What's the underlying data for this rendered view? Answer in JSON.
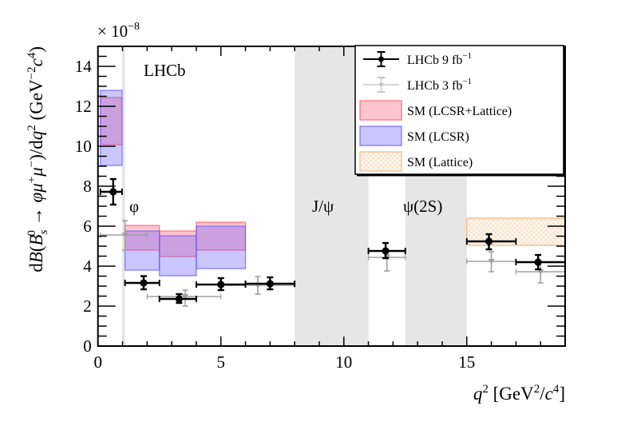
{
  "chart_data": {
    "type": "scatter",
    "title": "",
    "xlabel": "q^2 [GeV^2/c^4]",
    "xlabel_parts": {
      "q": "q",
      "sup1": "2",
      "mid": " [GeV",
      "sup2": "2",
      "slash": "/",
      "c": "c",
      "sup3": "4",
      "end": "]"
    },
    "ylabel": "dB(B_s^0 → φμ+μ−)/dq^2 (GeV^-2 c^4)",
    "ylabel_parts": {
      "d": "d",
      "B": "B",
      "open": "(",
      "Bs": "B",
      "sub": "s",
      "sup0": "0",
      "arrow": " → ",
      "phi": "φ",
      "mu": "μ",
      "plus": "+",
      "minus": "−",
      "close": ")/d",
      "q": "q",
      "sup2": "2",
      "units": " (GeV",
      "supm2": "−2",
      "c": "c",
      "sup4": "4",
      "uend": ")"
    },
    "y_multiplier": "× 10",
    "y_multiplier_exp": "−8",
    "xlim": [
      0,
      19
    ],
    "ylim": [
      0,
      15
    ],
    "x_ticks": [
      0,
      5,
      10,
      15
    ],
    "x_tick_labels": [
      "0",
      "5",
      "10",
      "15"
    ],
    "y_ticks": [
      0,
      2,
      4,
      6,
      8,
      10,
      12,
      14
    ],
    "y_tick_labels": [
      "0",
      "2",
      "4",
      "6",
      "8",
      "10",
      "12",
      "14"
    ],
    "grid": false,
    "legend_position": "top-right",
    "experiment_label": "LHCb",
    "vetoed_regions": [
      {
        "x0": 0.98,
        "x1": 1.1,
        "label": "φ"
      },
      {
        "x0": 8.0,
        "x1": 11.0,
        "label": "J/ψ"
      },
      {
        "x0": 12.5,
        "x1": 15.0,
        "label": "ψ(2S)"
      }
    ],
    "series": [
      {
        "name": "LHCb 9 fb−1",
        "legend": {
          "main": "LHCb 9 fb",
          "sup": "−1"
        },
        "kind": "points",
        "color": "#000000",
        "points": [
          {
            "x0": 0.1,
            "x1": 0.98,
            "x": 0.62,
            "y": 7.72,
            "ylo": 7.08,
            "yhi": 8.36
          },
          {
            "x0": 1.1,
            "x1": 2.5,
            "x": 1.86,
            "y": 3.16,
            "ylo": 2.84,
            "yhi": 3.5
          },
          {
            "x0": 2.5,
            "x1": 4.0,
            "x": 3.3,
            "y": 2.36,
            "ylo": 2.16,
            "yhi": 2.6
          },
          {
            "x0": 4.0,
            "x1": 6.0,
            "x": 5.0,
            "y": 3.08,
            "ylo": 2.8,
            "yhi": 3.4
          },
          {
            "x0": 6.0,
            "x1": 8.0,
            "x": 7.0,
            "y": 3.12,
            "ylo": 2.84,
            "yhi": 3.44
          },
          {
            "x0": 11.0,
            "x1": 12.5,
            "x": 11.7,
            "y": 4.76,
            "ylo": 4.4,
            "yhi": 5.16
          },
          {
            "x0": 15.0,
            "x1": 17.0,
            "x": 15.9,
            "y": 5.24,
            "ylo": 4.84,
            "yhi": 5.6
          },
          {
            "x0": 17.0,
            "x1": 19.0,
            "x": 17.9,
            "y": 4.2,
            "ylo": 3.84,
            "yhi": 4.56
          }
        ]
      },
      {
        "name": "LHCb 3 fb−1",
        "legend": {
          "main": "LHCb 3 fb",
          "sup": "−1"
        },
        "kind": "points",
        "color": "#a0a0a0",
        "points": [
          {
            "x0": 0.1,
            "x1": 2.0,
            "x": 1.1,
            "y": 5.56,
            "ylo": 4.8,
            "yhi": 6.28
          },
          {
            "x0": 2.0,
            "x1": 5.0,
            "x": 3.55,
            "y": 2.48,
            "ylo": 2.0,
            "yhi": 2.8
          },
          {
            "x0": 5.0,
            "x1": 8.0,
            "x": 6.5,
            "y": 3.04,
            "ylo": 2.6,
            "yhi": 3.48
          },
          {
            "x0": 11.0,
            "x1": 12.5,
            "x": 11.75,
            "y": 4.44,
            "ylo": 3.76,
            "yhi": 4.56
          },
          {
            "x0": 15.0,
            "x1": 17.0,
            "x": 16.0,
            "y": 4.24,
            "ylo": 3.72,
            "yhi": 4.72
          },
          {
            "x0": 17.0,
            "x1": 19.0,
            "x": 18.0,
            "y": 3.72,
            "ylo": 3.16,
            "yhi": 4.2
          }
        ]
      },
      {
        "name": "SM (LCSR+Lattice)",
        "kind": "band",
        "color": "#ff5a6e",
        "bins": [
          {
            "x0": 0.1,
            "x1": 0.98,
            "ylo": 10.08,
            "yhi": 12.44
          },
          {
            "x0": 1.1,
            "x1": 2.5,
            "ylo": 4.8,
            "yhi": 6.04
          },
          {
            "x0": 2.5,
            "x1": 4.0,
            "ylo": 4.48,
            "yhi": 5.76
          },
          {
            "x0": 4.0,
            "x1": 6.0,
            "ylo": 4.8,
            "yhi": 6.2
          }
        ]
      },
      {
        "name": "SM (LCSR)",
        "kind": "band",
        "color": "#6a5cff",
        "bins": [
          {
            "x0": 0.1,
            "x1": 0.98,
            "ylo": 9.04,
            "yhi": 12.8
          },
          {
            "x0": 1.1,
            "x1": 2.5,
            "ylo": 3.8,
            "yhi": 5.76
          },
          {
            "x0": 2.5,
            "x1": 4.0,
            "ylo": 3.52,
            "yhi": 5.52
          },
          {
            "x0": 4.0,
            "x1": 6.0,
            "ylo": 3.88,
            "yhi": 6.0
          }
        ]
      },
      {
        "name": "SM (Lattice)",
        "kind": "band",
        "color": "#f0b27a",
        "bins": [
          {
            "x0": 15.0,
            "x1": 19.0,
            "ylo": 5.04,
            "yhi": 6.4
          }
        ]
      }
    ]
  }
}
